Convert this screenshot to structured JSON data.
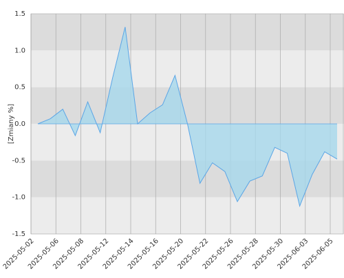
{
  "chart_data": {
    "type": "area",
    "y_label": "[Zmiany %]",
    "categories": [
      "2025-05-02",
      null,
      "2025-05-06",
      null,
      "2025-05-08",
      null,
      "2025-05-12",
      null,
      "2025-05-14",
      null,
      "2025-05-16",
      null,
      "2025-05-20",
      null,
      "2025-05-22",
      null,
      "2025-05-26",
      null,
      "2025-05-28",
      null,
      "2025-05-30",
      null,
      "2025-06-03",
      null,
      "2025-06-05"
    ],
    "values": [
      0.0,
      0.07,
      0.2,
      -0.16,
      0.3,
      -0.12,
      0.63,
      1.32,
      0.0,
      0.15,
      0.26,
      0.66,
      0.0,
      -0.81,
      -0.53,
      -0.65,
      -1.06,
      -0.78,
      -0.71,
      -0.32,
      -0.4,
      -1.12,
      -0.69,
      -0.38,
      -0.48
    ],
    "color": "#5aa5e6",
    "fill_color": "#a6d8ec",
    "ylim": [
      -1.5,
      1.5
    ],
    "yticks": [
      -1.5,
      {
        "value": -1,
        "label": "-1.0"
      },
      -0.5,
      {
        "value": 0,
        "label": "0.0"
      },
      0.5,
      {
        "value": 1,
        "label": "1.0"
      },
      1.5
    ],
    "grid": true
  }
}
